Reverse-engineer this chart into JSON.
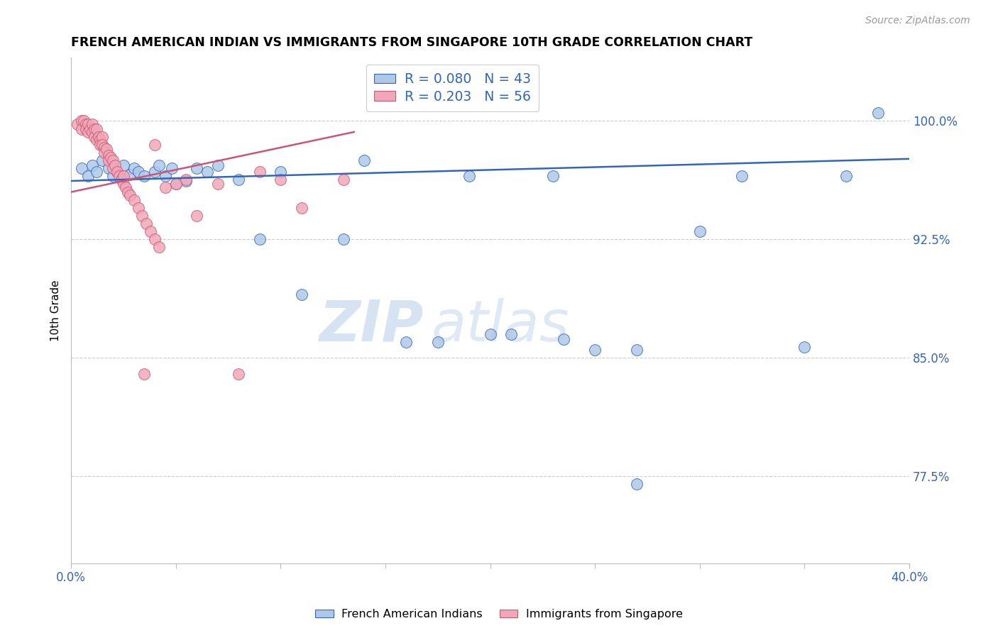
{
  "title": "FRENCH AMERICAN INDIAN VS IMMIGRANTS FROM SINGAPORE 10TH GRADE CORRELATION CHART",
  "source": "Source: ZipAtlas.com",
  "ylabel": "10th Grade",
  "yaxis_labels": [
    "77.5%",
    "85.0%",
    "92.5%",
    "100.0%"
  ],
  "yaxis_values": [
    0.775,
    0.85,
    0.925,
    1.0
  ],
  "xlim": [
    0.0,
    0.4
  ],
  "ylim": [
    0.72,
    1.04
  ],
  "legend_r1": "R = 0.080",
  "legend_n1": "N = 43",
  "legend_r2": "R = 0.203",
  "legend_n2": "N = 56",
  "color_blue": "#aec8e8",
  "color_pink": "#f0a8b8",
  "color_trendline_blue": "#3366bb",
  "color_trendline_pink": "#cc5577",
  "watermark_zip": "ZIP",
  "watermark_atlas": "atlas",
  "blue_scatter_x": [
    0.005,
    0.008,
    0.01,
    0.012,
    0.015,
    0.018,
    0.02,
    0.022,
    0.025,
    0.028,
    0.03,
    0.032,
    0.035,
    0.04,
    0.042,
    0.045,
    0.048,
    0.05,
    0.055,
    0.06,
    0.065,
    0.07,
    0.08,
    0.09,
    0.1,
    0.11,
    0.13,
    0.14,
    0.16,
    0.175,
    0.19,
    0.21,
    0.23,
    0.235,
    0.25,
    0.27,
    0.3,
    0.32,
    0.35,
    0.37,
    0.385,
    0.2,
    0.27
  ],
  "blue_scatter_y": [
    0.97,
    0.965,
    0.972,
    0.968,
    0.975,
    0.97,
    0.965,
    0.968,
    0.972,
    0.966,
    0.97,
    0.968,
    0.965,
    0.968,
    0.972,
    0.965,
    0.97,
    0.96,
    0.962,
    0.97,
    0.968,
    0.972,
    0.963,
    0.925,
    0.968,
    0.89,
    0.925,
    0.975,
    0.86,
    0.86,
    0.965,
    0.865,
    0.965,
    0.862,
    0.855,
    0.855,
    0.93,
    0.965,
    0.857,
    0.965,
    1.005,
    0.865,
    0.77
  ],
  "pink_scatter_x": [
    0.003,
    0.005,
    0.005,
    0.006,
    0.007,
    0.007,
    0.008,
    0.008,
    0.009,
    0.01,
    0.01,
    0.011,
    0.011,
    0.012,
    0.012,
    0.013,
    0.014,
    0.014,
    0.015,
    0.015,
    0.016,
    0.016,
    0.017,
    0.018,
    0.018,
    0.019,
    0.02,
    0.02,
    0.021,
    0.022,
    0.023,
    0.024,
    0.025,
    0.026,
    0.027,
    0.028,
    0.03,
    0.032,
    0.034,
    0.036,
    0.038,
    0.04,
    0.042,
    0.045,
    0.05,
    0.055,
    0.06,
    0.07,
    0.08,
    0.09,
    0.1,
    0.11,
    0.13,
    0.04,
    0.025,
    0.035
  ],
  "pink_scatter_y": [
    0.998,
    1.0,
    0.995,
    1.0,
    0.998,
    0.995,
    0.998,
    0.993,
    0.995,
    0.998,
    0.993,
    0.995,
    0.99,
    0.995,
    0.988,
    0.99,
    0.988,
    0.985,
    0.99,
    0.985,
    0.983,
    0.98,
    0.982,
    0.978,
    0.975,
    0.977,
    0.975,
    0.97,
    0.972,
    0.968,
    0.965,
    0.963,
    0.96,
    0.958,
    0.955,
    0.953,
    0.95,
    0.945,
    0.94,
    0.935,
    0.93,
    0.925,
    0.92,
    0.958,
    0.96,
    0.963,
    0.94,
    0.96,
    0.84,
    0.968,
    0.963,
    0.945,
    0.963,
    0.985,
    0.965,
    0.84
  ]
}
